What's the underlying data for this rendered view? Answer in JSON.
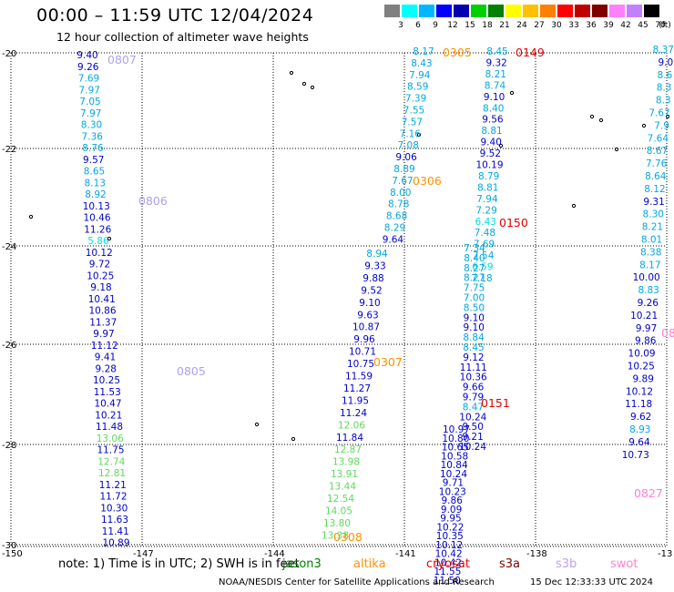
{
  "title": "00:00 – 11:59 UTC 12/04/2024",
  "subtitle": "12 hour collection of altimeter wave heights",
  "scale": {
    "unit": "(ft)",
    "labels": [
      "3",
      "6",
      "9",
      "12",
      "15",
      "18",
      "21",
      "24",
      "27",
      "30",
      "33",
      "36",
      "39",
      "42",
      "45",
      "70"
    ],
    "colors": [
      "#808080",
      "#00ffff",
      "#00b7ff",
      "#0000ff",
      "#0000b0",
      "#00d000",
      "#008000",
      "#ffff00",
      "#ffc000",
      "#ff8000",
      "#ff0000",
      "#c00000",
      "#800000",
      "#ff80ff",
      "#c080ff",
      "#000000"
    ]
  },
  "axes": {
    "lat_labels": [
      "-20",
      "-22",
      "-24",
      "-26",
      "-28",
      "-30"
    ],
    "lon_labels": [
      "-150",
      "-147",
      "-144",
      "-141",
      "-138",
      "-13"
    ]
  },
  "tracks": [
    {
      "pass": "0807",
      "pass_color": "#b0a0f0",
      "values": [
        [
          "9.40",
          "#0000c8"
        ],
        [
          "9.26",
          "#0000c8"
        ],
        [
          "7.69",
          "#00a8e0"
        ],
        [
          "7.97",
          "#00a8e0"
        ],
        [
          "7.05",
          "#00a8e0"
        ],
        [
          "7.97",
          "#00a8e0"
        ],
        [
          "8.30",
          "#00a8e0"
        ],
        [
          "7.36",
          "#00a8e0"
        ],
        [
          "8.76",
          "#00a8e0"
        ],
        [
          "9.57",
          "#0000c8"
        ],
        [
          "8.65",
          "#00a8e0"
        ],
        [
          "8.13",
          "#00a8e0"
        ],
        [
          "8.92",
          "#00a8e0"
        ],
        [
          "10.13",
          "#0000c8"
        ],
        [
          "10.46",
          "#0000c8"
        ],
        [
          "11.26",
          "#0000c8"
        ],
        [
          "5.86",
          "#00e0e0"
        ],
        [
          "10.12",
          "#0000c8"
        ],
        [
          "9.72",
          "#0000c8"
        ],
        [
          "10.25",
          "#0000c8"
        ],
        [
          "9.18",
          "#0000c8"
        ],
        [
          "10.41",
          "#0000c8"
        ],
        [
          "10.86",
          "#0000c8"
        ],
        [
          "11.37",
          "#0000c8"
        ],
        [
          "9.97",
          "#0000c8"
        ],
        [
          "11.12",
          "#0000c8"
        ],
        [
          "9.41",
          "#0000c8"
        ],
        [
          "9.28",
          "#0000c8"
        ],
        [
          "10.25",
          "#0000c8"
        ],
        [
          "11.53",
          "#0000c8"
        ],
        [
          "10.47",
          "#0000c8"
        ],
        [
          "10.21",
          "#0000c8"
        ],
        [
          "11.48",
          "#0000c8"
        ],
        [
          "13.06",
          "#60d860"
        ],
        [
          "11.75",
          "#0000c8"
        ],
        [
          "12.74",
          "#60d860"
        ],
        [
          "12.81",
          "#60d860"
        ],
        [
          "11.21",
          "#0000c8"
        ],
        [
          "11.72",
          "#0000c8"
        ],
        [
          "10.30",
          "#0000c8"
        ],
        [
          "11.63",
          "#0000c8"
        ],
        [
          "11.41",
          "#0000c8"
        ],
        [
          "10.89",
          "#0000c8"
        ]
      ]
    },
    {
      "pass": "0806",
      "pass_color": "#b0a0f0"
    },
    {
      "pass": "0805",
      "pass_color": "#b0a0f0"
    },
    {
      "pass": "0307",
      "pass_color": "#ff9000",
      "values": [
        [
          "8.94",
          "#00a8e0"
        ],
        [
          "9.33",
          "#0000c8"
        ],
        [
          "9.88",
          "#0000c8"
        ],
        [
          "9.52",
          "#0000c8"
        ],
        [
          "9.10",
          "#0000c8"
        ],
        [
          "9.63",
          "#0000c8"
        ],
        [
          "10.87",
          "#0000c8"
        ],
        [
          "9.96",
          "#0000c8"
        ],
        [
          "10.71",
          "#0000c8"
        ],
        [
          "10.75",
          "#0000c8"
        ],
        [
          "11.59",
          "#0000c8"
        ],
        [
          "11.27",
          "#0000c8"
        ],
        [
          "11.95",
          "#0000c8"
        ],
        [
          "11.24",
          "#0000c8"
        ],
        [
          "12.06",
          "#60d860"
        ],
        [
          "11.84",
          "#0000c8"
        ],
        [
          "12.87",
          "#60d860"
        ],
        [
          "13.98",
          "#60d860"
        ],
        [
          "13.91",
          "#60d860"
        ],
        [
          "13.44",
          "#60d860"
        ],
        [
          "12.54",
          "#60d860"
        ],
        [
          "14.05",
          "#60d860"
        ],
        [
          "13.80",
          "#60d860"
        ],
        [
          "13.38",
          "#60d860"
        ]
      ]
    },
    {
      "pass": "0306",
      "pass_color": "#ff9000",
      "values": [
        [
          "8.17",
          "#00a8e0"
        ],
        [
          "8.43",
          "#00a8e0"
        ],
        [
          "7.94",
          "#00a8e0"
        ],
        [
          "8.59",
          "#00a8e0"
        ],
        [
          "7.39",
          "#00a8e0"
        ],
        [
          "7.55",
          "#00a8e0"
        ],
        [
          "7.57",
          "#00a8e0"
        ],
        [
          "7.16",
          "#00a8e0"
        ],
        [
          "7.08",
          "#00a8e0"
        ],
        [
          "9.06",
          "#0000c8"
        ],
        [
          "8.89",
          "#00a8e0"
        ],
        [
          "7.67",
          "#00a8e0"
        ],
        [
          "8.00",
          "#00a8e0"
        ],
        [
          "8.78",
          "#00a8e0"
        ],
        [
          "8.68",
          "#00a8e0"
        ],
        [
          "8.29",
          "#00a8e0"
        ],
        [
          "9.64",
          "#0000c8"
        ]
      ]
    },
    {
      "pass": "0305",
      "pass_color": "#ff9000"
    },
    {
      "pass": "0308",
      "pass_color": "#ff9000"
    },
    {
      "pass": "0149",
      "pass_color": "#e00000",
      "values": [
        [
          "8.45",
          "#00a8e0"
        ],
        [
          "9.32",
          "#0000c8"
        ],
        [
          "8.21",
          "#00a8e0"
        ],
        [
          "8.74",
          "#00a8e0"
        ],
        [
          "9.10",
          "#0000c8"
        ],
        [
          "8.40",
          "#00a8e0"
        ],
        [
          "9.56",
          "#0000c8"
        ],
        [
          "8.81",
          "#00a8e0"
        ],
        [
          "9.40",
          "#0000c8"
        ],
        [
          "9.52",
          "#0000c8"
        ],
        [
          "10.19",
          "#0000c8"
        ],
        [
          "8.79",
          "#00a8e0"
        ],
        [
          "8.81",
          "#00a8e0"
        ],
        [
          "7.94",
          "#00a8e0"
        ],
        [
          "7.29",
          "#00a8e0"
        ],
        [
          "6.43",
          "#00e0e0"
        ],
        [
          "7.48",
          "#00a8e0"
        ],
        [
          "7.69",
          "#00a8e0"
        ],
        [
          "7.54",
          "#00a8e0"
        ],
        [
          "6.59",
          "#00e0e0"
        ],
        [
          "7.18",
          "#00a8e0"
        ]
      ]
    },
    {
      "pass": "0150",
      "pass_color": "#e00000",
      "values": [
        [
          "7.34",
          "#00a8e0"
        ],
        [
          "8.40",
          "#00a8e0"
        ],
        [
          "8.27",
          "#00a8e0"
        ],
        [
          "8.27",
          "#00a8e0"
        ],
        [
          "7.75",
          "#00a8e0"
        ],
        [
          "7.00",
          "#00a8e0"
        ],
        [
          "8.50",
          "#00a8e0"
        ],
        [
          "9.10",
          "#0000c8"
        ],
        [
          "9.10",
          "#0000c8"
        ],
        [
          "8.84",
          "#00a8e0"
        ],
        [
          "8.45",
          "#00a8e0"
        ],
        [
          "9.12",
          "#0000c8"
        ],
        [
          "11.11",
          "#0000c8"
        ],
        [
          "10.36",
          "#0000c8"
        ],
        [
          "9.66",
          "#0000c8"
        ],
        [
          "9.79",
          "#0000c8"
        ],
        [
          "8.47",
          "#00a8e0"
        ],
        [
          "10.24",
          "#0000c8"
        ],
        [
          "9.50",
          "#0000c8"
        ],
        [
          "9.21",
          "#0000c8"
        ],
        [
          "10.24",
          "#0000c8"
        ]
      ]
    },
    {
      "pass": "0151",
      "pass_color": "#e00000",
      "values": [
        [
          "10.97",
          "#0000c8"
        ],
        [
          "10.80",
          "#0000c8"
        ],
        [
          "10.65",
          "#0000c8"
        ],
        [
          "10.58",
          "#0000c8"
        ],
        [
          "10.84",
          "#0000c8"
        ],
        [
          "10.24",
          "#0000c8"
        ],
        [
          "9.71",
          "#0000c8"
        ],
        [
          "10.23",
          "#0000c8"
        ],
        [
          "9.86",
          "#0000c8"
        ],
        [
          "9.09",
          "#0000c8"
        ],
        [
          "9.95",
          "#0000c8"
        ],
        [
          "10.22",
          "#0000c8"
        ],
        [
          "10.35",
          "#0000c8"
        ],
        [
          "10.12",
          "#0000c8"
        ],
        [
          "10.42",
          "#0000c8"
        ],
        [
          "10.42",
          "#0000c8"
        ],
        [
          "11.55",
          "#0000c8"
        ],
        [
          "11.50",
          "#0000c8"
        ]
      ]
    },
    {
      "pass": "0827",
      "pass_color": "#ff80d0",
      "values": [
        [
          "8.37",
          "#00a8e0"
        ],
        [
          "9.0",
          "#0000c8"
        ],
        [
          "8.6",
          "#00a8e0"
        ],
        [
          "8.3",
          "#00a8e0"
        ],
        [
          "8.3",
          "#00a8e0"
        ],
        [
          "7.67",
          "#00a8e0"
        ],
        [
          "7.9",
          "#00a8e0"
        ],
        [
          "7.64",
          "#00a8e0"
        ],
        [
          "8.67",
          "#00a8e0"
        ],
        [
          "7.76",
          "#00a8e0"
        ],
        [
          "8.64",
          "#00a8e0"
        ],
        [
          "8.12",
          "#00a8e0"
        ],
        [
          "9.31",
          "#0000c8"
        ],
        [
          "8.30",
          "#00a8e0"
        ],
        [
          "8.21",
          "#00a8e0"
        ],
        [
          "8.01",
          "#00a8e0"
        ],
        [
          "8.38",
          "#00a8e0"
        ],
        [
          "8.17",
          "#00a8e0"
        ],
        [
          "10.00",
          "#0000c8"
        ],
        [
          "8.83",
          "#00a8e0"
        ],
        [
          "9.26",
          "#0000c8"
        ],
        [
          "10.21",
          "#0000c8"
        ],
        [
          "9.97",
          "#0000c8"
        ],
        [
          "9.86",
          "#0000c8"
        ],
        [
          "10.09",
          "#0000c8"
        ],
        [
          "10.25",
          "#0000c8"
        ],
        [
          "9.89",
          "#0000c8"
        ],
        [
          "10.12",
          "#0000c8"
        ],
        [
          "11.18",
          "#0000c8"
        ],
        [
          "9.62",
          "#0000c8"
        ],
        [
          "8.93",
          "#00a8e0"
        ],
        [
          "9.64",
          "#0000c8"
        ],
        [
          "10.73",
          "#0000c8"
        ]
      ]
    },
    {
      "pass": "08",
      "pass_color": "#ff80d0"
    }
  ],
  "note": "note:  1) Time is in UTC;  2) SWH is in feet",
  "legend": [
    {
      "label": "jason3",
      "color": "#008000"
    },
    {
      "label": "altika",
      "color": "#ff9000"
    },
    {
      "label": "cryosat",
      "color": "#e00000"
    },
    {
      "label": "s3a",
      "color": "#800000"
    },
    {
      "label": "s3b",
      "color": "#c0a0f0"
    },
    {
      "label": "swot",
      "color": "#ff80d0"
    }
  ],
  "credit": "NOAA/NESDIS Center for Satellite Applications and Research",
  "timestamp": "15 Dec 12:33:33 UTC 2024"
}
